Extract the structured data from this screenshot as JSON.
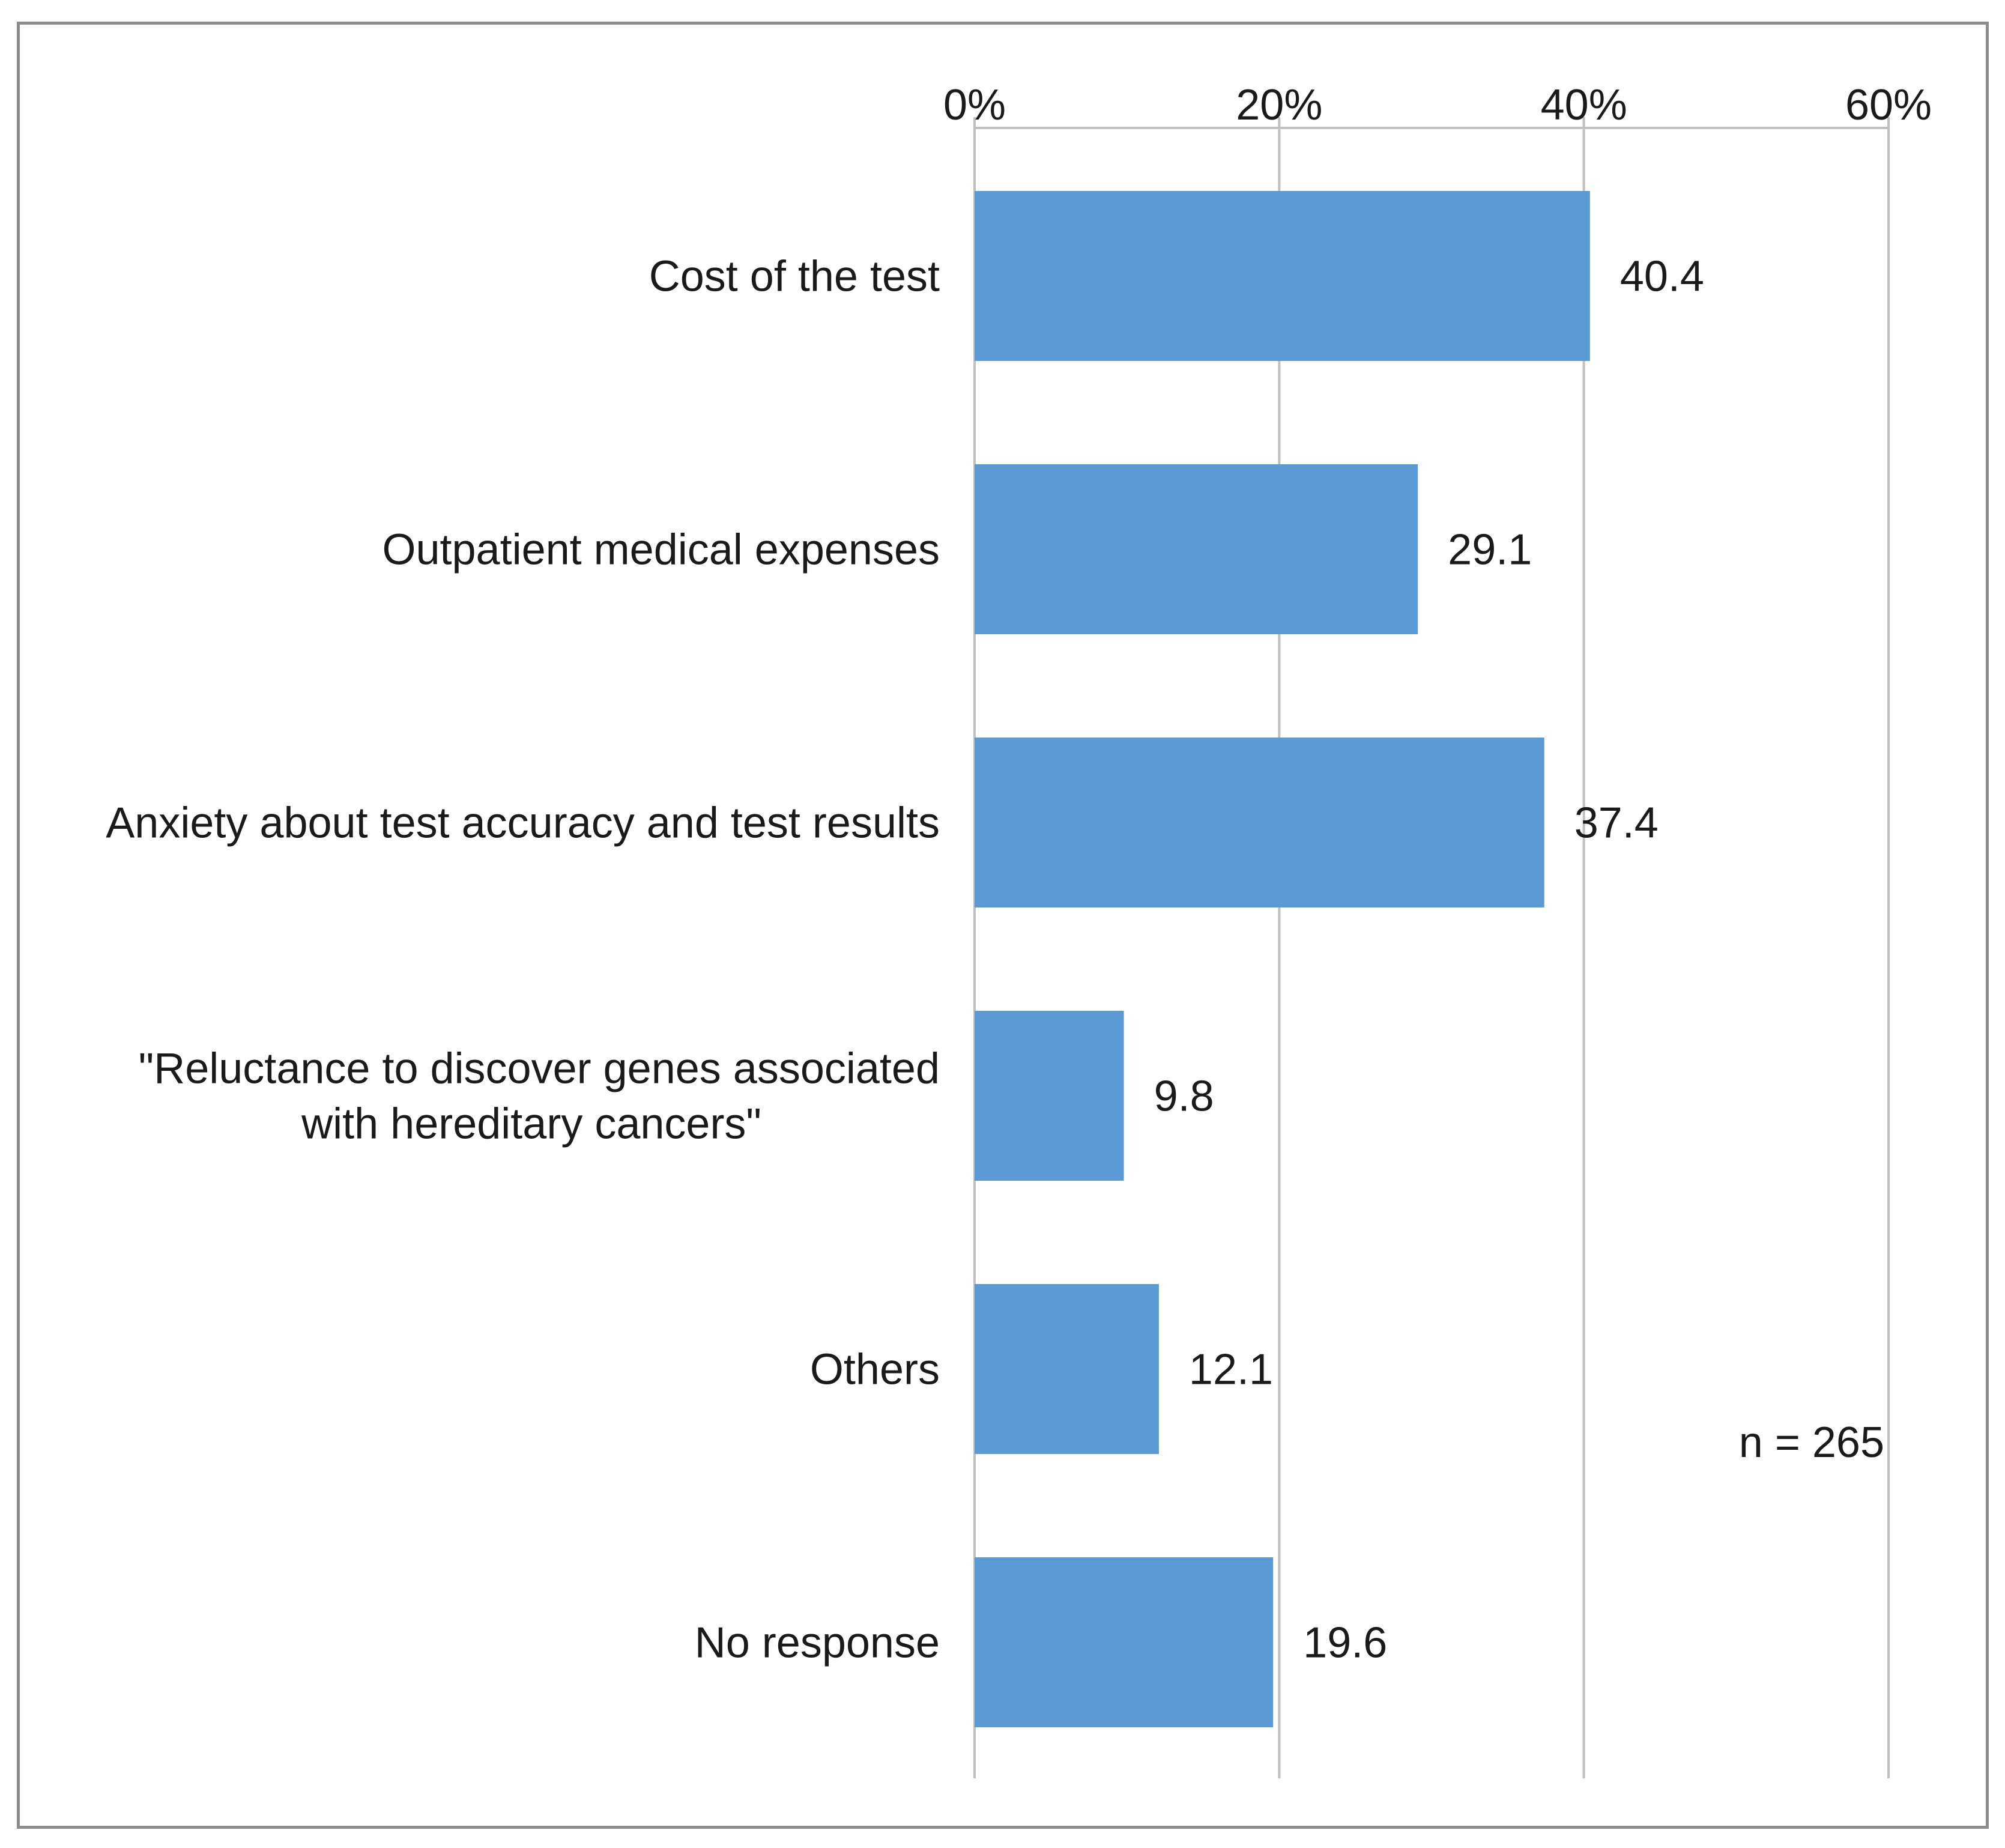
{
  "chart_data": {
    "type": "bar",
    "orientation": "horizontal",
    "categories": [
      [
        "Cost of the test"
      ],
      [
        "Outpatient medical expenses"
      ],
      [
        "Anxiety about test accuracy and test results"
      ],
      [
        "\"Reluctance to discover genes associated",
        "with hereditary cancers\""
      ],
      [
        "Others"
      ],
      [
        "No response"
      ]
    ],
    "values": [
      40.4,
      29.1,
      37.4,
      9.8,
      12.1,
      19.6
    ],
    "value_labels": [
      "40.4",
      "29.1",
      "37.4",
      "9.8",
      "12.1",
      "19.6"
    ],
    "xlim": [
      0,
      60
    ],
    "x_ticks": [
      0,
      20,
      40,
      60
    ],
    "x_tick_labels": [
      "0%",
      "20%",
      "40%",
      "60%"
    ],
    "x_axis_position": "top",
    "grid": true,
    "annotation": "n = 265",
    "title": "",
    "xlabel": "",
    "ylabel": "",
    "bar_color": "#5b9bd5",
    "grid_color": "#c0c0c0",
    "text_color": "#1a1a1a",
    "frame_color": "#8c8c8c"
  }
}
